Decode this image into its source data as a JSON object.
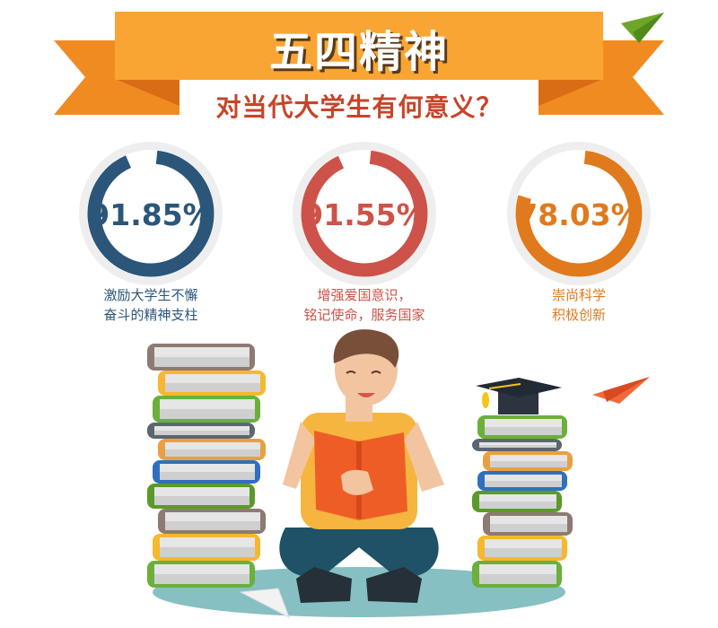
{
  "header": {
    "title": "五四精神",
    "subtitle": "对当代大学生有何意义？"
  },
  "chart_data": {
    "type": "pie",
    "variant": "donut-gauges",
    "series": [
      {
        "value": 91.85,
        "label": "91.85%",
        "caption_lines": [
          "激励大学生不懈",
          "奋斗的精神支柱"
        ],
        "color": "#2b567a"
      },
      {
        "value": 91.55,
        "label": "91.55%",
        "caption_lines": [
          "增强爱国意识，",
          "铭记使命，服务国家"
        ],
        "color": "#cd5249"
      },
      {
        "value": 78.03,
        "label": "78.03%",
        "caption_lines": [
          "崇尚科学",
          "积极创新"
        ],
        "color": "#e07a1c"
      }
    ],
    "track_color": "#eeeeee"
  },
  "colors": {
    "banner": "#f9a533",
    "banner_wing": "#f08b22",
    "banner_fold": "#d96d15",
    "subtitle": "#c6452a"
  }
}
